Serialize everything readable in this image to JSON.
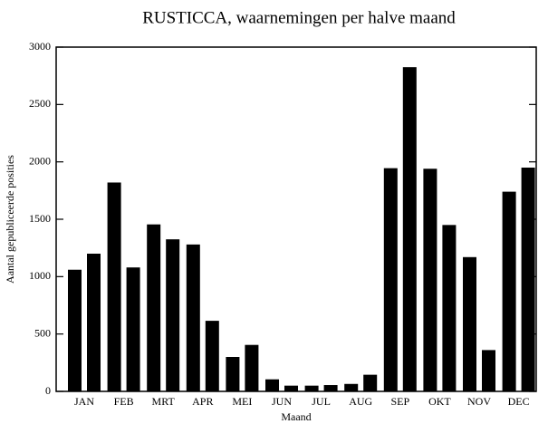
{
  "chart_data": {
    "type": "bar",
    "title": "RUSTICCA, waarnemingen per halve maand",
    "x_label": "Maand",
    "y_label": "Aantal gepubliceerde posities",
    "categories": [
      "JAN",
      "FEB",
      "MRT",
      "APR",
      "MEI",
      "JUN",
      "JUL",
      "AUG",
      "SEP",
      "OKT",
      "NOV",
      "DEC"
    ],
    "series": [
      {
        "color": "#000000",
        "values": [
          1060,
          1820,
          1455,
          1280,
          300,
          105,
          50,
          65,
          1945,
          1940,
          1170,
          1740
        ]
      },
      {
        "color": "#000000",
        "values": [
          1200,
          1080,
          1325,
          615,
          405,
          50,
          55,
          145,
          2825,
          1450,
          360,
          1950
        ]
      }
    ],
    "ylim": [
      0,
      3000
    ],
    "yticks": [
      0,
      500,
      1000,
      1500,
      2000,
      2500,
      3000
    ],
    "grid": false
  }
}
